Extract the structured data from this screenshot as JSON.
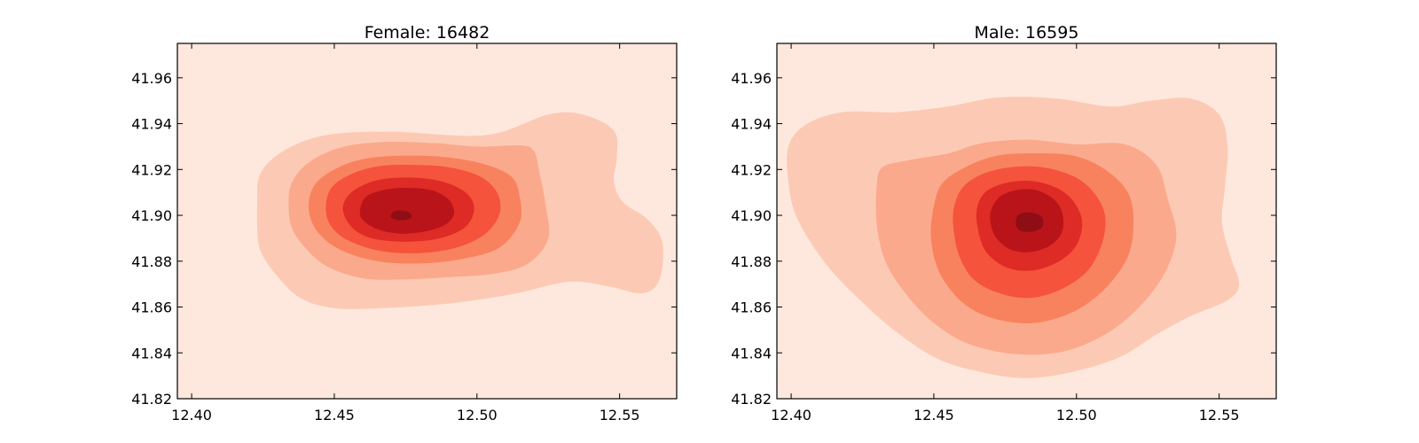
{
  "chart_data": [
    {
      "type": "contour",
      "title": "Female: 16482",
      "xlim": [
        12.395,
        12.57
      ],
      "ylim": [
        41.82,
        41.975
      ],
      "xticks": [
        "12.40",
        "12.45",
        "12.50",
        "12.55"
      ],
      "yticks": [
        "41.82",
        "41.84",
        "41.86",
        "41.88",
        "41.90",
        "41.92",
        "41.94",
        "41.96"
      ],
      "density_peak": {
        "x": 12.473,
        "y": 41.9
      },
      "levels": [
        {
          "level": 1,
          "color": "#fccab4",
          "points": [
            [
              12.423,
              41.905
            ],
            [
              12.424,
              41.918
            ],
            [
              12.432,
              41.928
            ],
            [
              12.447,
              41.935
            ],
            [
              12.47,
              41.9365
            ],
            [
              12.503,
              41.935
            ],
            [
              12.525,
              41.944
            ],
            [
              12.537,
              41.944
            ],
            [
              12.548,
              41.937
            ],
            [
              12.549,
              41.925
            ],
            [
              12.548,
              41.915
            ],
            [
              12.551,
              41.906
            ],
            [
              12.56,
              41.898
            ],
            [
              12.565,
              41.888
            ],
            [
              12.564,
              41.872
            ],
            [
              12.558,
              41.866
            ],
            [
              12.546,
              41.869
            ],
            [
              12.532,
              41.871
            ],
            [
              12.512,
              41.8655
            ],
            [
              12.49,
              41.8615
            ],
            [
              12.467,
              41.8595
            ],
            [
              12.45,
              41.8595
            ],
            [
              12.438,
              41.864
            ],
            [
              12.429,
              41.875
            ],
            [
              12.424,
              41.885
            ],
            [
              12.423,
              41.895
            ]
          ]
        },
        {
          "level": 2,
          "color": "#fba98c",
          "points": [
            [
              12.434,
              41.904
            ],
            [
              12.435,
              41.914
            ],
            [
              12.441,
              41.923
            ],
            [
              12.452,
              41.9295
            ],
            [
              12.467,
              41.932
            ],
            [
              12.485,
              41.9315
            ],
            [
              12.5,
              41.93
            ],
            [
              12.515,
              41.9305
            ],
            [
              12.52,
              41.928
            ],
            [
              12.522,
              41.918
            ],
            [
              12.524,
              41.905
            ],
            [
              12.525,
              41.89
            ],
            [
              12.518,
              41.879
            ],
            [
              12.506,
              41.8745
            ],
            [
              12.49,
              41.873
            ],
            [
              12.474,
              41.872
            ],
            [
              12.46,
              41.8725
            ],
            [
              12.447,
              41.878
            ],
            [
              12.439,
              41.887
            ],
            [
              12.435,
              41.895
            ]
          ]
        },
        {
          "level": 3,
          "color": "#f9825e",
          "points": [
            [
              12.441,
              41.903
            ],
            [
              12.443,
              41.913
            ],
            [
              12.45,
              41.92
            ],
            [
              12.46,
              41.9245
            ],
            [
              12.473,
              41.926
            ],
            [
              12.488,
              41.9255
            ],
            [
              12.502,
              41.9225
            ],
            [
              12.512,
              41.917
            ],
            [
              12.515,
              41.908
            ],
            [
              12.515,
              41.897
            ],
            [
              12.508,
              41.886
            ],
            [
              12.495,
              41.881
            ],
            [
              12.48,
              41.879
            ],
            [
              12.465,
              41.88
            ],
            [
              12.452,
              41.885
            ],
            [
              12.444,
              41.893
            ]
          ]
        },
        {
          "level": 4,
          "color": "#f5533b",
          "points": [
            [
              12.447,
              41.903
            ],
            [
              12.449,
              41.912
            ],
            [
              12.456,
              41.918
            ],
            [
              12.466,
              41.9215
            ],
            [
              12.478,
              41.922
            ],
            [
              12.49,
              41.921
            ],
            [
              12.501,
              41.917
            ],
            [
              12.507,
              41.91
            ],
            [
              12.508,
              41.901
            ],
            [
              12.503,
              41.892
            ],
            [
              12.493,
              41.886
            ],
            [
              12.48,
              41.8835
            ],
            [
              12.466,
              41.8845
            ],
            [
              12.455,
              41.889
            ],
            [
              12.449,
              41.895
            ]
          ]
        },
        {
          "level": 5,
          "color": "#de2b26",
          "points": [
            [
              12.453,
              41.903
            ],
            [
              12.456,
              41.91
            ],
            [
              12.464,
              41.915
            ],
            [
              12.475,
              41.9165
            ],
            [
              12.487,
              41.915
            ],
            [
              12.496,
              41.91
            ],
            [
              12.499,
              41.903
            ],
            [
              12.496,
              41.895
            ],
            [
              12.487,
              41.89
            ],
            [
              12.475,
              41.8885
            ],
            [
              12.463,
              41.89
            ],
            [
              12.456,
              41.895
            ]
          ]
        },
        {
          "level": 6,
          "color": "#b9141a",
          "points": [
            [
              12.459,
              41.902
            ],
            [
              12.461,
              41.908
            ],
            [
              12.467,
              41.911
            ],
            [
              12.475,
              41.912
            ],
            [
              12.484,
              41.911
            ],
            [
              12.49,
              41.907
            ],
            [
              12.492,
              41.901
            ],
            [
              12.489,
              41.896
            ],
            [
              12.482,
              41.893
            ],
            [
              12.473,
              41.892
            ],
            [
              12.465,
              41.894
            ],
            [
              12.46,
              41.898
            ]
          ]
        },
        {
          "level": 7,
          "color": "#8f0d14",
          "points": [
            [
              12.47,
              41.9005
            ],
            [
              12.4715,
              41.902
            ],
            [
              12.474,
              41.902
            ],
            [
              12.4765,
              41.901
            ],
            [
              12.477,
              41.899
            ],
            [
              12.475,
              41.898
            ],
            [
              12.472,
              41.898
            ],
            [
              12.47,
              41.899
            ]
          ]
        }
      ]
    },
    {
      "type": "contour",
      "title": "Male: 16595",
      "xlim": [
        12.395,
        12.57
      ],
      "ylim": [
        41.82,
        41.975
      ],
      "xticks": [
        "12.40",
        "12.45",
        "12.50",
        "12.55"
      ],
      "yticks": [
        "41.82",
        "41.84",
        "41.86",
        "41.88",
        "41.90",
        "41.92",
        "41.94",
        "41.96"
      ],
      "density_peak": {
        "x": 12.482,
        "y": 41.896
      },
      "levels": [
        {
          "level": 1,
          "color": "#fccab4",
          "points": [
            [
              12.399,
              41.93
            ],
            [
              12.405,
              41.9395
            ],
            [
              12.418,
              41.945
            ],
            [
              12.437,
              41.945
            ],
            [
              12.455,
              41.9475
            ],
            [
              12.473,
              41.9515
            ],
            [
              12.493,
              41.951
            ],
            [
              12.512,
              41.9475
            ],
            [
              12.526,
              41.95
            ],
            [
              12.54,
              41.951
            ],
            [
              12.55,
              41.944
            ],
            [
              12.553,
              41.93
            ],
            [
              12.552,
              41.912
            ],
            [
              12.551,
              41.897
            ],
            [
              12.554,
              41.882
            ],
            [
              12.557,
              41.87
            ],
            [
              12.553,
              41.863
            ],
            [
              12.54,
              41.856
            ],
            [
              12.528,
              41.848
            ],
            [
              12.515,
              41.838
            ],
            [
              12.498,
              41.8315
            ],
            [
              12.482,
              41.829
            ],
            [
              12.467,
              41.8315
            ],
            [
              12.452,
              41.837
            ],
            [
              12.438,
              41.848
            ],
            [
              12.425,
              41.862
            ],
            [
              12.412,
              41.879
            ],
            [
              12.402,
              41.899
            ],
            [
              12.399,
              41.915
            ]
          ]
        },
        {
          "level": 2,
          "color": "#fba98c",
          "points": [
            [
              12.43,
              41.913
            ],
            [
              12.432,
              41.921
            ],
            [
              12.441,
              41.924
            ],
            [
              12.455,
              41.927
            ],
            [
              12.467,
              41.9315
            ],
            [
              12.483,
              41.933
            ],
            [
              12.5,
              41.931
            ],
            [
              12.517,
              41.931
            ],
            [
              12.528,
              41.922
            ],
            [
              12.532,
              41.907
            ],
            [
              12.535,
              41.891
            ],
            [
              12.531,
              41.875
            ],
            [
              12.522,
              41.86
            ],
            [
              12.51,
              41.848
            ],
            [
              12.495,
              41.8405
            ],
            [
              12.478,
              41.8395
            ],
            [
              12.462,
              41.844
            ],
            [
              12.45,
              41.853
            ],
            [
              12.44,
              41.866
            ],
            [
              12.433,
              41.88
            ],
            [
              12.43,
              41.896
            ]
          ]
        },
        {
          "level": 3,
          "color": "#f9825e",
          "points": [
            [
              12.45,
              41.904
            ],
            [
              12.453,
              41.914
            ],
            [
              12.461,
              41.921
            ],
            [
              12.472,
              41.926
            ],
            [
              12.485,
              41.927
            ],
            [
              12.499,
              41.926
            ],
            [
              12.51,
              41.92
            ],
            [
              12.518,
              41.91
            ],
            [
              12.52,
              41.897
            ],
            [
              12.518,
              41.882
            ],
            [
              12.51,
              41.868
            ],
            [
              12.499,
              41.858
            ],
            [
              12.485,
              41.853
            ],
            [
              12.471,
              41.855
            ],
            [
              12.46,
              41.862
            ],
            [
              12.452,
              41.875
            ],
            [
              12.449,
              41.89
            ]
          ]
        },
        {
          "level": 4,
          "color": "#f5533b",
          "points": [
            [
              12.457,
              41.903
            ],
            [
              12.46,
              41.912
            ],
            [
              12.467,
              41.918
            ],
            [
              12.477,
              41.921
            ],
            [
              12.488,
              41.921
            ],
            [
              12.499,
              41.917
            ],
            [
              12.506,
              41.91
            ],
            [
              12.51,
              41.9
            ],
            [
              12.509,
              41.888
            ],
            [
              12.504,
              41.876
            ],
            [
              12.495,
              41.868
            ],
            [
              12.484,
              41.864
            ],
            [
              12.473,
              41.866
            ],
            [
              12.464,
              41.872
            ],
            [
              12.459,
              41.882
            ],
            [
              12.457,
              41.893
            ]
          ]
        },
        {
          "level": 5,
          "color": "#de2b26",
          "points": [
            [
              12.465,
              41.902
            ],
            [
              12.468,
              41.91
            ],
            [
              12.475,
              41.914
            ],
            [
              12.484,
              41.915
            ],
            [
              12.493,
              41.912
            ],
            [
              12.499,
              41.906
            ],
            [
              12.502,
              41.897
            ],
            [
              12.5,
              41.887
            ],
            [
              12.494,
              41.88
            ],
            [
              12.485,
              41.876
            ],
            [
              12.476,
              41.877
            ],
            [
              12.469,
              41.883
            ],
            [
              12.466,
              41.891
            ]
          ]
        },
        {
          "level": 6,
          "color": "#b9141a",
          "points": [
            [
              12.47,
              41.902
            ],
            [
              12.473,
              41.908
            ],
            [
              12.479,
              41.911
            ],
            [
              12.486,
              41.911
            ],
            [
              12.492,
              41.907
            ],
            [
              12.495,
              41.901
            ],
            [
              12.495,
              41.893
            ],
            [
              12.491,
              41.887
            ],
            [
              12.484,
              41.884
            ],
            [
              12.477,
              41.885
            ],
            [
              12.472,
              41.89
            ],
            [
              12.47,
              41.896
            ]
          ]
        },
        {
          "level": 7,
          "color": "#8f0d14",
          "points": [
            [
              12.479,
              41.899
            ],
            [
              12.481,
              41.901
            ],
            [
              12.485,
              41.901
            ],
            [
              12.488,
              41.899
            ],
            [
              12.488,
              41.895
            ],
            [
              12.485,
              41.893
            ],
            [
              12.481,
              41.893
            ],
            [
              12.479,
              41.895
            ]
          ]
        }
      ]
    }
  ],
  "colors": {
    "background_level": "#fee8de",
    "axis": "#000000"
  }
}
